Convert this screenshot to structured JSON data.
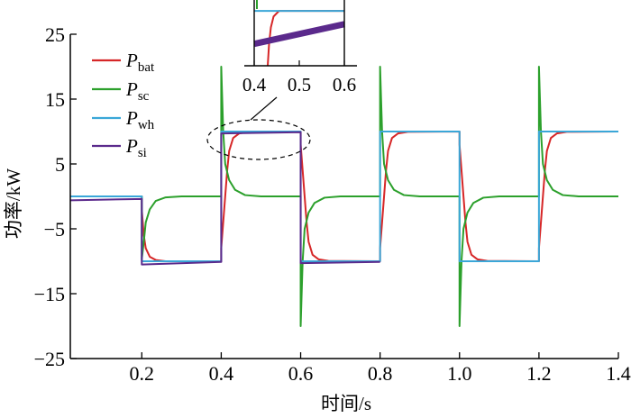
{
  "chart_data": {
    "type": "line",
    "xlabel": "时间/s",
    "ylabel": "功率/kW",
    "xlim": [
      0.02,
      1.4
    ],
    "ylim": [
      -25,
      25
    ],
    "x_ticks": [
      "0.2",
      "0.4",
      "0.6",
      "0.8",
      "1.0",
      "1.2",
      "1.4"
    ],
    "y_ticks": [
      "25",
      "15",
      "5",
      "−5",
      "−15",
      "−25"
    ],
    "grid": false,
    "legend_position": "top-left",
    "series": [
      {
        "id": "bat",
        "name": "P",
        "name_sub": "bat",
        "color": "#d62728",
        "points": [
          [
            0.02,
            0
          ],
          [
            0.2,
            0
          ],
          [
            0.2,
            -2
          ],
          [
            0.205,
            -6
          ],
          [
            0.21,
            -8
          ],
          [
            0.22,
            -9.3
          ],
          [
            0.235,
            -9.8
          ],
          [
            0.26,
            -10
          ],
          [
            0.4,
            -10
          ],
          [
            0.4,
            -8
          ],
          [
            0.405,
            -4
          ],
          [
            0.41,
            0
          ],
          [
            0.415,
            4
          ],
          [
            0.42,
            7
          ],
          [
            0.43,
            9
          ],
          [
            0.445,
            9.7
          ],
          [
            0.47,
            9.95
          ],
          [
            0.6,
            10
          ],
          [
            0.6,
            8
          ],
          [
            0.605,
            4
          ],
          [
            0.61,
            0
          ],
          [
            0.615,
            -4
          ],
          [
            0.62,
            -7
          ],
          [
            0.63,
            -9
          ],
          [
            0.645,
            -9.7
          ],
          [
            0.67,
            -9.95
          ],
          [
            0.8,
            -10
          ],
          [
            0.8,
            -8
          ],
          [
            0.805,
            -4
          ],
          [
            0.81,
            0
          ],
          [
            0.815,
            4
          ],
          [
            0.82,
            7
          ],
          [
            0.83,
            9
          ],
          [
            0.845,
            9.7
          ],
          [
            0.87,
            9.95
          ],
          [
            1.0,
            10
          ],
          [
            1.0,
            8
          ],
          [
            1.005,
            4
          ],
          [
            1.01,
            0
          ],
          [
            1.015,
            -4
          ],
          [
            1.02,
            -7
          ],
          [
            1.03,
            -9
          ],
          [
            1.045,
            -9.7
          ],
          [
            1.07,
            -9.95
          ],
          [
            1.2,
            -10
          ],
          [
            1.2,
            -8
          ],
          [
            1.205,
            -4
          ],
          [
            1.21,
            0
          ],
          [
            1.215,
            4
          ],
          [
            1.22,
            7
          ],
          [
            1.23,
            9
          ],
          [
            1.245,
            9.7
          ],
          [
            1.27,
            9.95
          ],
          [
            1.4,
            10
          ]
        ]
      },
      {
        "id": "sc",
        "name": "P",
        "name_sub": "sc",
        "color": "#2ca02c",
        "points": [
          [
            0.02,
            0
          ],
          [
            0.2,
            0
          ],
          [
            0.2,
            -9.7
          ],
          [
            0.205,
            -7
          ],
          [
            0.21,
            -4
          ],
          [
            0.22,
            -2
          ],
          [
            0.235,
            -0.7
          ],
          [
            0.26,
            -0.15
          ],
          [
            0.3,
            0
          ],
          [
            0.4,
            0
          ],
          [
            0.4,
            20
          ],
          [
            0.405,
            10
          ],
          [
            0.41,
            5
          ],
          [
            0.42,
            2.5
          ],
          [
            0.435,
            1
          ],
          [
            0.46,
            0.2
          ],
          [
            0.5,
            0
          ],
          [
            0.6,
            0
          ],
          [
            0.6,
            -20
          ],
          [
            0.605,
            -10
          ],
          [
            0.61,
            -5
          ],
          [
            0.62,
            -2.5
          ],
          [
            0.635,
            -1
          ],
          [
            0.66,
            -0.2
          ],
          [
            0.7,
            0
          ],
          [
            0.8,
            0
          ],
          [
            0.8,
            20
          ],
          [
            0.805,
            10
          ],
          [
            0.81,
            5
          ],
          [
            0.82,
            2.5
          ],
          [
            0.835,
            1
          ],
          [
            0.86,
            0.2
          ],
          [
            0.9,
            0
          ],
          [
            1.0,
            0
          ],
          [
            1.0,
            -20
          ],
          [
            1.005,
            -10
          ],
          [
            1.01,
            -5
          ],
          [
            1.02,
            -2.5
          ],
          [
            1.035,
            -1
          ],
          [
            1.06,
            -0.2
          ],
          [
            1.1,
            0
          ],
          [
            1.2,
            0
          ],
          [
            1.2,
            20
          ],
          [
            1.205,
            10
          ],
          [
            1.21,
            5
          ],
          [
            1.22,
            2.5
          ],
          [
            1.235,
            1
          ],
          [
            1.26,
            0.2
          ],
          [
            1.3,
            0
          ],
          [
            1.4,
            0
          ]
        ]
      },
      {
        "id": "wh",
        "name": "P",
        "name_sub": "wh",
        "color": "#3aa7d8",
        "points": [
          [
            0.02,
            0
          ],
          [
            0.2,
            0
          ],
          [
            0.2,
            -10
          ],
          [
            0.4,
            -10
          ],
          [
            0.4,
            10
          ],
          [
            0.6,
            10
          ],
          [
            0.6,
            -10
          ],
          [
            0.8,
            -10
          ],
          [
            0.8,
            10
          ],
          [
            1.0,
            10
          ],
          [
            1.0,
            -10
          ],
          [
            1.2,
            -10
          ],
          [
            1.2,
            10
          ],
          [
            1.4,
            10
          ]
        ]
      },
      {
        "id": "si",
        "name": "P",
        "name_sub": "si",
        "color": "#5b2a8c",
        "points": [
          [
            0.02,
            -0.6
          ],
          [
            0.2,
            -0.4
          ],
          [
            0.2,
            -10.5
          ],
          [
            0.4,
            -10.1
          ],
          [
            0.4,
            9.7
          ],
          [
            0.6,
            9.9
          ],
          [
            0.6,
            -10.3
          ],
          [
            0.8,
            -10.1
          ]
        ]
      }
    ],
    "inset": {
      "x_ticks": [
        "0.4",
        "0.5",
        "0.6"
      ],
      "xlim": [
        0.39,
        0.6
      ],
      "ylim": [
        9.5,
        10.1
      ]
    }
  }
}
